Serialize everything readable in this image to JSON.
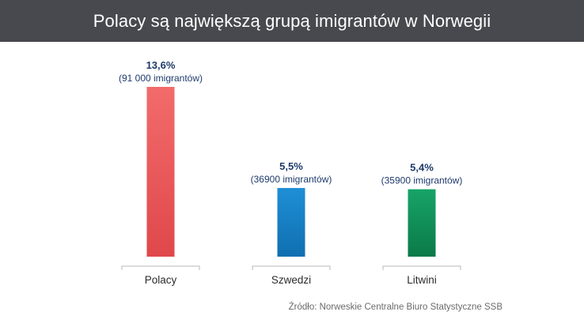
{
  "title": "Polacy są największą grupą imigrantów w Norwegii",
  "source": "Źródło: Norweskie Centralne Biuro Statystyczne SSB",
  "chart_data": {
    "type": "bar",
    "categories": [
      "Polacy",
      "Szwedzi",
      "Litwini"
    ],
    "values": [
      13.6,
      5.5,
      5.4
    ],
    "value_labels": [
      "13,6%",
      "5,5%",
      "5,4%"
    ],
    "sub_labels": [
      "(91 000 imigrantów)",
      "(36900 imigrantów)",
      "(35900 imigrantów)"
    ],
    "colors": [
      {
        "top": "#f26b6b",
        "bottom": "#e0484b"
      },
      {
        "top": "#1f8fd6",
        "bottom": "#0f6fb0"
      },
      {
        "top": "#17a468",
        "bottom": "#0b7a48"
      }
    ],
    "ylim": [
      0,
      13.6
    ],
    "grid": false
  }
}
